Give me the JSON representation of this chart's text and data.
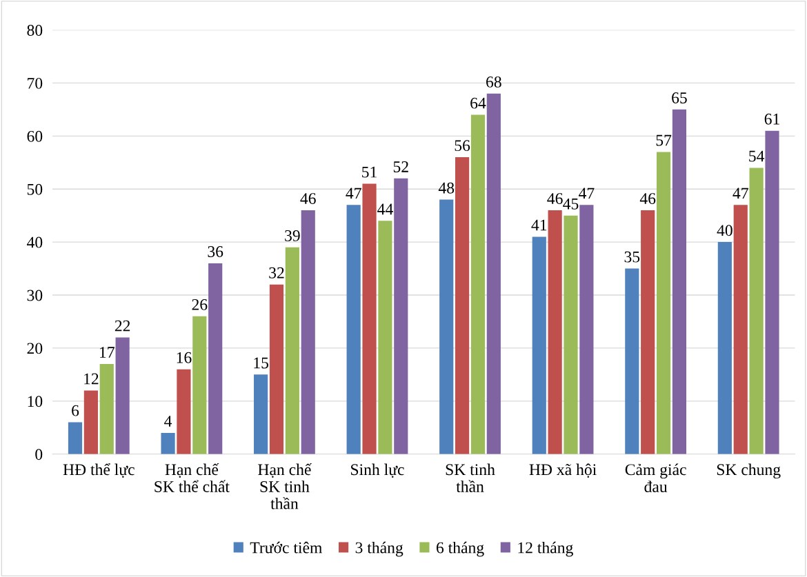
{
  "chart_data": {
    "type": "bar",
    "categories": [
      "HĐ thể lực",
      "Hạn chế\nSK thể chất",
      "Hạn chế\nSK tinh\nthần",
      "Sinh lực",
      "SK tinh\nthần",
      "HĐ xã hội",
      "Cảm giác\nđau",
      "SK chung"
    ],
    "series": [
      {
        "name": "Trước tiêm",
        "color": "#4f81bd",
        "values": [
          6,
          4,
          15,
          47,
          48,
          41,
          35,
          40
        ]
      },
      {
        "name": "3 tháng",
        "color": "#c0504d",
        "values": [
          12,
          16,
          32,
          51,
          56,
          46,
          46,
          47
        ]
      },
      {
        "name": "6 tháng",
        "color": "#9bbb59",
        "values": [
          17,
          26,
          39,
          44,
          64,
          45,
          57,
          54
        ]
      },
      {
        "name": "12 tháng",
        "color": "#8064a2",
        "values": [
          22,
          36,
          46,
          52,
          68,
          47,
          65,
          61
        ]
      }
    ],
    "ylim": [
      0,
      80
    ],
    "yticks": [
      0,
      10,
      20,
      30,
      40,
      50,
      60,
      70,
      80
    ],
    "grid": "y",
    "legend": "bottom",
    "data_labels": true
  }
}
